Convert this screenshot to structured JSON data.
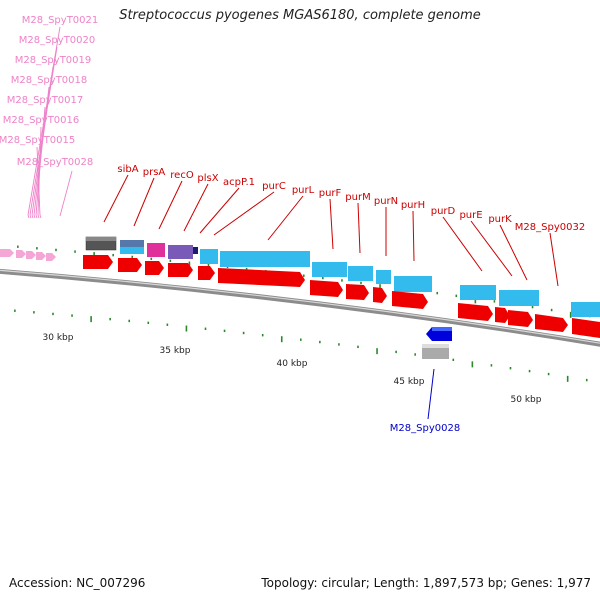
{
  "title": "Streptococcus pyogenes MGAS6180, complete genome",
  "accession": "Accession: NC_007296",
  "topology": "Topology: circular; Length: 1,897,573 bp; Genes: 1,977",
  "colors": {
    "trna_label": "#ee82c8",
    "trna": "#f4a6d7",
    "gene_label": "#cc0000",
    "cds": "#ff0000",
    "gene": "#33bbee",
    "blue_label": "#0000cc",
    "backbone": "#9a9a9a",
    "tick": "#2a8a2a",
    "kbp": "#222222"
  },
  "trna_labels": [
    "M28_SpyT0021",
    "M28_SpyT0020",
    "M28_SpyT0019",
    "M28_SpyT0018",
    "M28_SpyT0017",
    "M28_SpyT0016",
    "M28_SpyT0015",
    "M28_SpyT0028"
  ],
  "gene_labels": [
    "sibA",
    "prsA",
    "recO",
    "plsX",
    "acpP.1",
    "purC",
    "purL",
    "purF",
    "purM",
    "purN",
    "purH",
    "purD",
    "purE",
    "purK",
    "M28_Spy0032"
  ],
  "minus_label": "M28_Spy0028",
  "kbp_labels": [
    "30 kbp",
    "35 kbp",
    "40 kbp",
    "45 kbp",
    "50 kbp"
  ]
}
